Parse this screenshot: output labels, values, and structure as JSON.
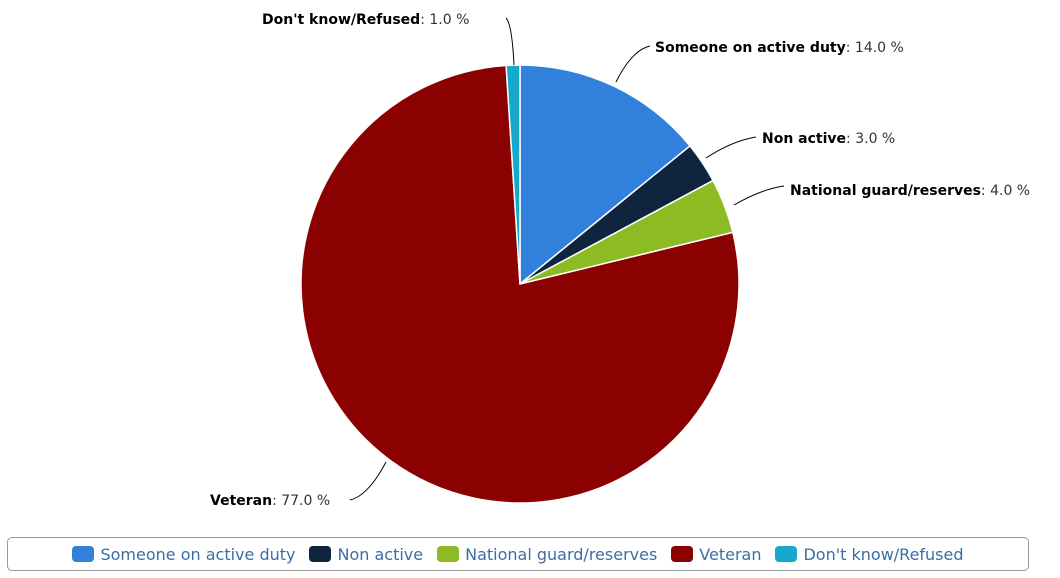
{
  "chart_data": {
    "type": "pie",
    "unit": "%",
    "slices": [
      {
        "label": "Someone on active duty",
        "value": 14.0,
        "display": "14.0 %",
        "color": "#3181dc"
      },
      {
        "label": "Non active",
        "value": 3.0,
        "display": "3.0 %",
        "color": "#0f243e"
      },
      {
        "label": "National guard/reserves",
        "value": 4.0,
        "display": "4.0 %",
        "color": "#8dbb23"
      },
      {
        "label": "Veteran",
        "value": 77.0,
        "display": "77.0 %",
        "color": "#8b0000"
      },
      {
        "label": "Don't know/Refused",
        "value": 1.0,
        "display": "1.0 %",
        "color": "#17a9c9"
      }
    ],
    "legend": {
      "placement": "bottom"
    }
  }
}
